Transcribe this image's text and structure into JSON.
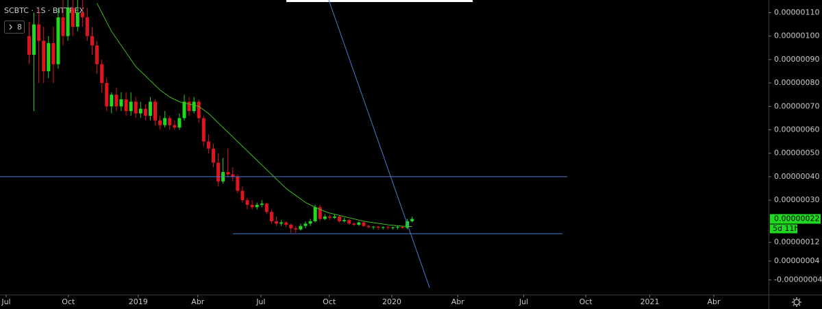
{
  "chart_data": {
    "type": "candlestick",
    "symbol_title": "SCBTC · 1S · BITTREX",
    "indicator_count": 8,
    "xlim": [
      0,
      158.5
    ],
    "xticks": [
      {
        "value": 1.27,
        "label": "Jul"
      },
      {
        "value": 14.1,
        "label": "Oct"
      },
      {
        "value": 28.5,
        "label": "2019"
      },
      {
        "value": 40.8,
        "label": "Abr"
      },
      {
        "value": 53.8,
        "label": "Jul"
      },
      {
        "value": 67.9,
        "label": "Oct"
      },
      {
        "value": 80.8,
        "label": "2020"
      },
      {
        "value": 94.4,
        "label": "Abr"
      },
      {
        "value": 108,
        "label": "Jul"
      },
      {
        "value": 120.8,
        "label": "Oct"
      },
      {
        "value": 134,
        "label": "2021"
      },
      {
        "value": 147.2,
        "label": "Abr"
      }
    ],
    "ylim": [
      -1.03e-07,
      1.154e-06
    ],
    "yticks": [
      {
        "value": 1.1e-06,
        "label": "0.00000110"
      },
      {
        "value": 1e-06,
        "label": "0.00000100"
      },
      {
        "value": 9e-07,
        "label": "0.00000090"
      },
      {
        "value": 8e-07,
        "label": "0.00000080"
      },
      {
        "value": 7e-07,
        "label": "0.00000070"
      },
      {
        "value": 6e-07,
        "label": "0.00000060"
      },
      {
        "value": 5e-07,
        "label": "0.00000050"
      },
      {
        "value": 4e-07,
        "label": "0.00000040"
      },
      {
        "value": 3e-07,
        "label": "0.00000030"
      },
      {
        "value": 1.2e-07,
        "label": "0.00000012"
      },
      {
        "value": 4e-08,
        "label": "0.00000004"
      },
      {
        "value": -4e-08,
        "label": "-0.00000004"
      }
    ],
    "up_color": "#1fd81f",
    "down_color": "#e0141e",
    "x": [
      6,
      7,
      8,
      9,
      10,
      11,
      12,
      13,
      14,
      15,
      16,
      17,
      18,
      19,
      20,
      21,
      22,
      23,
      24,
      25,
      26,
      27,
      28,
      29,
      30,
      31,
      32,
      33,
      34,
      35,
      36,
      37,
      38,
      39,
      40,
      41,
      42,
      43,
      44,
      45,
      46,
      47,
      48,
      49,
      50,
      51,
      52,
      53,
      54,
      55,
      56,
      57,
      58,
      59,
      60,
      61,
      62,
      63,
      64,
      65,
      66,
      67,
      68,
      69,
      70,
      71,
      72,
      73,
      74,
      75,
      76,
      77,
      78,
      79,
      80,
      81,
      82,
      83,
      84,
      85
    ],
    "open": [
      1e-06,
      9.2e-07,
      1.05e-06,
      9.8e-07,
      8.5e-07,
      9.7e-07,
      8.8e-07,
      1.08e-06,
      1e-06,
      1.12e-06,
      1.04e-06,
      1.1e-06,
      1.08e-06,
      1e-06,
      9.6e-07,
      8.8e-07,
      8e-07,
      7e-07,
      7.5e-07,
      7e-07,
      7.3e-07,
      6.8e-07,
      7.2e-07,
      6.7e-07,
      6.9e-07,
      6.6e-07,
      7.2e-07,
      6.4e-07,
      6.2e-07,
      6.5e-07,
      6.2e-07,
      6.1e-07,
      6.5e-07,
      7.2e-07,
      6.8e-07,
      7.2e-07,
      6.5e-07,
      5.5e-07,
      5.2e-07,
      4.6e-07,
      3.8e-07,
      4.2e-07,
      4.1e-07,
      4e-07,
      3.4e-07,
      3e-07,
      2.8e-07,
      2.7e-07,
      2.8e-07,
      2.85e-07,
      2.5e-07,
      2.1e-07,
      2e-07,
      2.05e-07,
      1.95e-07,
      1.8e-07,
      1.75e-07,
      1.9e-07,
      2e-07,
      2.1e-07,
      2.7e-07,
      2.2e-07,
      2.3e-07,
      2.25e-07,
      2.3e-07,
      2.1e-07,
      2.15e-07,
      2e-07,
      1.95e-07,
      2.05e-07,
      1.9e-07,
      1.85e-07,
      1.87e-07,
      1.83e-07,
      1.85e-07,
      1.82e-07,
      1.84e-07,
      1.86e-07,
      1.82e-07,
      2.1e-07
    ],
    "high": [
      1.06e-06,
      1.1e-06,
      1.12e-06,
      1.04e-06,
      1e-06,
      1.04e-06,
      1.12e-06,
      1.16e-06,
      1.18e-06,
      1.18e-06,
      1.16e-06,
      1.18e-06,
      1.12e-06,
      1.04e-06,
      9.8e-07,
      9e-07,
      8.2e-07,
      7.6e-07,
      7.8e-07,
      7.6e-07,
      7.6e-07,
      7.6e-07,
      7.4e-07,
      7.2e-07,
      7.1e-07,
      7.4e-07,
      7.3e-07,
      6.6e-07,
      6.8e-07,
      6.6e-07,
      6.4e-07,
      6.7e-07,
      7.5e-07,
      7.4e-07,
      7.4e-07,
      7.3e-07,
      6.6e-07,
      5.8e-07,
      5.4e-07,
      5e-07,
      4.8e-07,
      5.2e-07,
      4.4e-07,
      4.1e-07,
      3.6e-07,
      3.1e-07,
      3e-07,
      2.9e-07,
      3e-07,
      2.9e-07,
      2.6e-07,
      2.3e-07,
      2.15e-07,
      2.1e-07,
      2e-07,
      1.9e-07,
      2e-07,
      2.1e-07,
      2.2e-07,
      2.8e-07,
      2.8e-07,
      2.4e-07,
      2.4e-07,
      2.4e-07,
      2.35e-07,
      2.25e-07,
      2.2e-07,
      2.05e-07,
      2.1e-07,
      2.1e-07,
      1.95e-07,
      1.9e-07,
      1.9e-07,
      1.88e-07,
      1.9e-07,
      1.87e-07,
      1.9e-07,
      1.9e-07,
      2.2e-07,
      2.3e-07
    ],
    "low": [
      8.8e-07,
      6.8e-07,
      8e-07,
      8e-07,
      8.2e-07,
      8e-07,
      8.6e-07,
      9.6e-07,
      9.8e-07,
      1e-06,
      1.02e-06,
      1.04e-06,
      9.8e-07,
      9.2e-07,
      8.4e-07,
      7.6e-07,
      6.8e-07,
      6.7e-07,
      6.8e-07,
      6.8e-07,
      6.6e-07,
      6.6e-07,
      6.5e-07,
      6.5e-07,
      6.4e-07,
      6.4e-07,
      6.2e-07,
      6e-07,
      6.1e-07,
      6e-07,
      6e-07,
      6e-07,
      6.4e-07,
      6.6e-07,
      6.7e-07,
      6.3e-07,
      5.3e-07,
      5e-07,
      4.4e-07,
      3.6e-07,
      3.7e-07,
      4e-07,
      3.8e-07,
      3.3e-07,
      2.9e-07,
      2.6e-07,
      2.6e-07,
      2.6e-07,
      2.7e-07,
      2.4e-07,
      2e-07,
      1.9e-07,
      1.9e-07,
      1.85e-07,
      1.6e-07,
      1.6e-07,
      1.7e-07,
      1.8e-07,
      1.9e-07,
      2.05e-07,
      2.1e-07,
      2.15e-07,
      2.15e-07,
      2.2e-07,
      2.05e-07,
      2.05e-07,
      1.95e-07,
      1.9e-07,
      1.9e-07,
      1.85e-07,
      1.8e-07,
      1.75e-07,
      1.75e-07,
      1.75e-07,
      1.75e-07,
      1.75e-07,
      1.75e-07,
      1.78e-07,
      1.75e-07,
      2.05e-07
    ],
    "close": [
      9.2e-07,
      1.05e-06,
      9.8e-07,
      8.5e-07,
      9.7e-07,
      8.8e-07,
      1.08e-06,
      1e-06,
      1.12e-06,
      1.04e-06,
      1.1e-06,
      1.08e-06,
      1e-06,
      9.6e-07,
      8.8e-07,
      8e-07,
      7e-07,
      7.5e-07,
      7e-07,
      7.3e-07,
      6.8e-07,
      7.2e-07,
      6.7e-07,
      6.9e-07,
      6.6e-07,
      7.2e-07,
      6.4e-07,
      6.2e-07,
      6.5e-07,
      6.2e-07,
      6.1e-07,
      6.5e-07,
      7.2e-07,
      6.8e-07,
      7.2e-07,
      6.5e-07,
      5.5e-07,
      5.2e-07,
      4.6e-07,
      3.8e-07,
      4.2e-07,
      4.1e-07,
      4e-07,
      3.4e-07,
      3e-07,
      2.8e-07,
      2.7e-07,
      2.8e-07,
      2.85e-07,
      2.5e-07,
      2.1e-07,
      2e-07,
      2.05e-07,
      1.95e-07,
      1.8e-07,
      1.75e-07,
      1.9e-07,
      2e-07,
      2.1e-07,
      2.7e-07,
      2.2e-07,
      2.3e-07,
      2.25e-07,
      2.3e-07,
      2.1e-07,
      2.15e-07,
      2e-07,
      1.95e-07,
      2.05e-07,
      1.9e-07,
      1.85e-07,
      1.87e-07,
      1.83e-07,
      1.85e-07,
      1.82e-07,
      1.84e-07,
      1.86e-07,
      1.82e-07,
      2.1e-07,
      2.2e-07
    ],
    "moving_average": {
      "color": "#3fbf1a",
      "values": [
        null,
        null,
        null,
        null,
        null,
        null,
        null,
        null,
        null,
        null,
        null,
        null,
        null,
        null,
        1.14e-06,
        1.1e-06,
        1.06e-06,
        1.02e-06,
        9.9e-07,
        9.6e-07,
        9.3e-07,
        9e-07,
        8.7e-07,
        8.5e-07,
        8.3e-07,
        8.1e-07,
        7.9e-07,
        7.7e-07,
        7.55e-07,
        7.4e-07,
        7.3e-07,
        7.2e-07,
        7.15e-07,
        7.1e-07,
        7.05e-07,
        7e-07,
        6.85e-07,
        6.7e-07,
        6.5e-07,
        6.3e-07,
        6.1e-07,
        5.9e-07,
        5.7e-07,
        5.5e-07,
        5.3e-07,
        5.1e-07,
        4.9e-07,
        4.7e-07,
        4.5e-07,
        4.3e-07,
        4.1e-07,
        3.9e-07,
        3.7e-07,
        3.5e-07,
        3.35e-07,
        3.2e-07,
        3.05e-07,
        2.9e-07,
        2.8e-07,
        2.7e-07,
        2.6e-07,
        2.52e-07,
        2.45e-07,
        2.4e-07,
        2.35e-07,
        2.3e-07,
        2.25e-07,
        2.2e-07,
        2.15e-07,
        2.1e-07,
        2.07e-07,
        2.04e-07,
        2.01e-07,
        1.98e-07,
        1.95e-07,
        1.93e-07,
        1.91e-07,
        1.89e-07,
        1.88e-07,
        1.88e-07
      ]
    },
    "trend_lines": [
      {
        "color": "#4a7bd0",
        "x": [
          0,
          117
        ],
        "y": [
          4e-07,
          4e-07
        ]
      },
      {
        "color": "#4a7bd0",
        "x": [
          48,
          116
        ],
        "y": [
          1.57e-07,
          1.57e-07
        ]
      },
      {
        "color": "#4a7bd0",
        "x": [
          67.8,
          88.6
        ],
        "y": [
          1.154e-06,
          -7.4e-08
        ]
      }
    ],
    "last_price": {
      "value": 2.2e-07,
      "label": "0.00000022"
    },
    "countdown": "5d 11h"
  }
}
